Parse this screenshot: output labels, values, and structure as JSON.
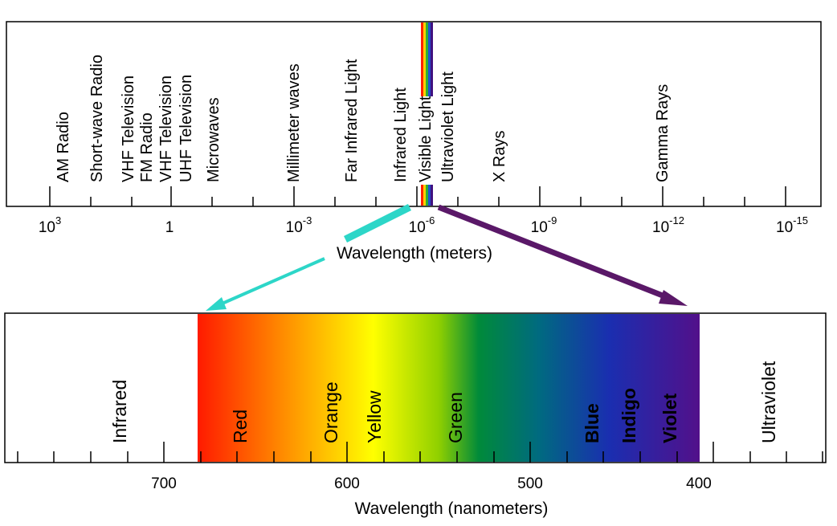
{
  "spectrum": {
    "band_labels": [
      "AM Radio",
      "Short-wave Radio",
      "VHF Television",
      "FM Radio",
      "VHF Television",
      "UHF Television",
      "Microwaves",
      "Millimeter waves",
      "Far Infrared Light",
      "Infrared Light",
      "Visible Light",
      "Ultraviolet Light",
      "X Rays",
      "Gamma Rays"
    ],
    "tick_labels": [
      {
        "base": "10",
        "exp": "3"
      },
      {
        "base": "1",
        "exp": ""
      },
      {
        "base": "10",
        "exp": "-3"
      },
      {
        "base": "10",
        "exp": "-6"
      },
      {
        "base": "10",
        "exp": "-9"
      },
      {
        "base": "10",
        "exp": "-12"
      },
      {
        "base": "10",
        "exp": "-15"
      }
    ],
    "axis_title": "Wavelength (meters)"
  },
  "visible": {
    "region_labels": [
      "Infrared",
      "Ultraviolet"
    ],
    "color_labels": [
      "Red",
      "Orange",
      "Yellow",
      "Green",
      "Blue",
      "Indigo",
      "Violet"
    ],
    "tick_labels": [
      "700",
      "600",
      "500",
      "400"
    ],
    "axis_title": "Wavelength (nanometers)"
  },
  "colors": {
    "cyan_arrow": "#2dd6c8",
    "purple_arrow": "#5a1868",
    "gradient": [
      "#ff1a00",
      "#ff8c00",
      "#ffff00",
      "#90d000",
      "#008a3a",
      "#006a80",
      "#1a2eb0",
      "#52108a"
    ]
  }
}
